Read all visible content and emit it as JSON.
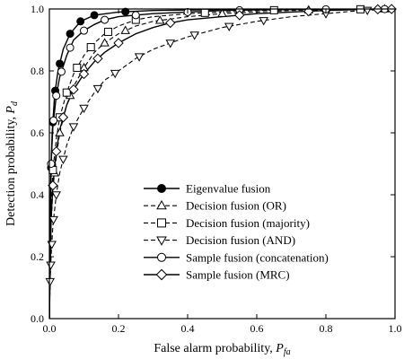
{
  "chart_data": {
    "type": "line",
    "xlabel": "False alarm probability, ",
    "xlabel_sub_base": "P",
    "xlabel_sub": "fa",
    "ylabel": "Detection probability, ",
    "ylabel_sub_base": "P",
    "ylabel_sub": "d",
    "xlim": [
      0,
      1
    ],
    "ylim": [
      0,
      1
    ],
    "xticks": [
      "0.0",
      "0.2",
      "0.4",
      "0.6",
      "0.8",
      "1.0"
    ],
    "yticks": [
      "0.0",
      "0.2",
      "0.4",
      "0.6",
      "0.8",
      "1.0"
    ],
    "grid": false,
    "legend_position": "lower-right",
    "series": [
      {
        "name": "Eigenvalue fusion",
        "marker": "filled-circle",
        "dash": "solid",
        "x": [
          0,
          0.004,
          0.008,
          0.015,
          0.025,
          0.04,
          0.06,
          0.09,
          0.13,
          0.2,
          0.3,
          0.5,
          0.7,
          1.0
        ],
        "y": [
          0,
          0.45,
          0.6,
          0.72,
          0.8,
          0.87,
          0.92,
          0.96,
          0.98,
          0.99,
          0.995,
          0.998,
          1.0,
          1.0
        ],
        "marker_x": [
          0.005,
          0.01,
          0.017,
          0.03,
          0.06,
          0.09,
          0.13,
          0.22
        ]
      },
      {
        "name": "Decision fusion (OR)",
        "marker": "triangle-up",
        "dash": "dash",
        "x": [
          0,
          0.005,
          0.01,
          0.02,
          0.03,
          0.05,
          0.07,
          0.1,
          0.13,
          0.16,
          0.2,
          0.25,
          0.3,
          0.4,
          0.5,
          0.6,
          0.7,
          0.8,
          0.9,
          1.0
        ],
        "y": [
          0,
          0.3,
          0.42,
          0.52,
          0.6,
          0.69,
          0.75,
          0.81,
          0.86,
          0.89,
          0.92,
          0.945,
          0.96,
          0.975,
          0.985,
          0.99,
          0.995,
          0.998,
          0.999,
          1.0
        ],
        "marker_x": [
          0.015,
          0.03,
          0.06,
          0.1,
          0.16,
          0.22,
          0.32,
          0.5,
          0.75,
          0.97
        ]
      },
      {
        "name": "Decision fusion (majority)",
        "marker": "square",
        "dash": "dash",
        "x": [
          0,
          0.005,
          0.01,
          0.02,
          0.03,
          0.05,
          0.07,
          0.1,
          0.13,
          0.16,
          0.2,
          0.25,
          0.3,
          0.4,
          0.5,
          0.6,
          0.7,
          0.8,
          0.9,
          1.0
        ],
        "y": [
          0,
          0.35,
          0.48,
          0.58,
          0.65,
          0.73,
          0.79,
          0.85,
          0.89,
          0.92,
          0.945,
          0.965,
          0.975,
          0.985,
          0.99,
          0.995,
          0.997,
          0.998,
          0.999,
          1.0
        ],
        "marker_x": [
          0.01,
          0.03,
          0.05,
          0.08,
          0.12,
          0.17,
          0.25,
          0.45,
          0.65,
          0.9
        ]
      },
      {
        "name": "Decision fusion (AND)",
        "marker": "triangle-down",
        "dash": "dash",
        "x": [
          0,
          0.002,
          0.005,
          0.01,
          0.02,
          0.03,
          0.05,
          0.07,
          0.1,
          0.13,
          0.16,
          0.2,
          0.25,
          0.3,
          0.35,
          0.4,
          0.5,
          0.6,
          0.7,
          0.8,
          0.9,
          1.0
        ],
        "y": [
          0,
          0.12,
          0.2,
          0.3,
          0.4,
          0.47,
          0.56,
          0.62,
          0.68,
          0.73,
          0.77,
          0.8,
          0.84,
          0.87,
          0.89,
          0.91,
          0.94,
          0.96,
          0.975,
          0.985,
          0.995,
          1.0
        ],
        "marker_x": [
          0.002,
          0.004,
          0.007,
          0.012,
          0.02,
          0.04,
          0.07,
          0.1,
          0.14,
          0.19,
          0.26,
          0.35,
          0.42,
          0.52,
          0.62,
          0.8,
          0.92
        ]
      },
      {
        "name": "Sample fusion (concatenation)",
        "marker": "open-circle",
        "dash": "solid",
        "x": [
          0,
          0.005,
          0.01,
          0.02,
          0.03,
          0.05,
          0.07,
          0.1,
          0.13,
          0.16,
          0.2,
          0.3,
          0.4,
          0.5,
          0.6,
          0.7,
          0.8,
          0.9,
          1.0
        ],
        "y": [
          0,
          0.5,
          0.62,
          0.72,
          0.78,
          0.85,
          0.9,
          0.93,
          0.95,
          0.965,
          0.975,
          0.985,
          0.99,
          0.995,
          0.997,
          0.998,
          0.999,
          0.999,
          1.0
        ],
        "marker_x": [
          0.005,
          0.012,
          0.02,
          0.035,
          0.06,
          0.1,
          0.16,
          0.25,
          0.4,
          0.55,
          0.8,
          0.97
        ]
      },
      {
        "name": "Sample fusion (MRC)",
        "marker": "diamond",
        "dash": "solid",
        "x": [
          0,
          0.005,
          0.01,
          0.02,
          0.03,
          0.05,
          0.07,
          0.1,
          0.13,
          0.16,
          0.2,
          0.25,
          0.3,
          0.35,
          0.4,
          0.5,
          0.6,
          0.7,
          0.8,
          0.9,
          1.0
        ],
        "y": [
          0,
          0.32,
          0.43,
          0.54,
          0.61,
          0.69,
          0.74,
          0.79,
          0.83,
          0.86,
          0.89,
          0.92,
          0.94,
          0.955,
          0.965,
          0.975,
          0.985,
          0.99,
          0.995,
          0.998,
          1.0
        ],
        "marker_x": [
          0.01,
          0.02,
          0.04,
          0.07,
          0.1,
          0.14,
          0.2,
          0.35,
          0.55,
          0.75,
          0.95,
          0.99
        ]
      }
    ]
  }
}
